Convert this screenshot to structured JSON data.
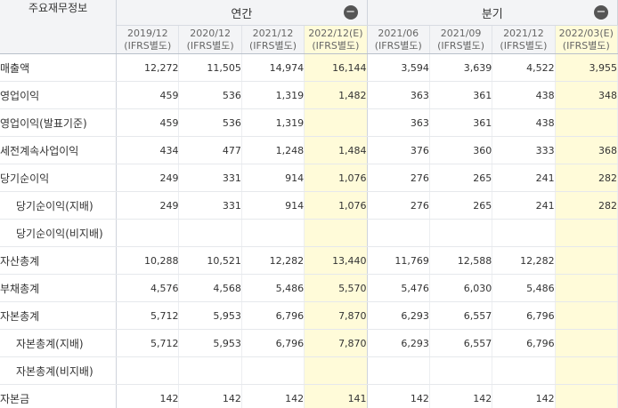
{
  "header": {
    "corner_label": "주요재무정보",
    "annual_label": "연간",
    "quarter_label": "분기",
    "collapse_glyph": "−"
  },
  "periods": {
    "annual": [
      {
        "date": "2019/12",
        "type": "(IFRS별도)"
      },
      {
        "date": "2020/12",
        "type": "(IFRS별도)"
      },
      {
        "date": "2021/12",
        "type": "(IFRS별도)"
      },
      {
        "date": "2022/12(E)",
        "type": "(IFRS별도)"
      }
    ],
    "quarter": [
      {
        "date": "2021/06",
        "type": "(IFRS별도)"
      },
      {
        "date": "2021/09",
        "type": "(IFRS별도)"
      },
      {
        "date": "2021/12",
        "type": "(IFRS별도)"
      },
      {
        "date": "2022/03(E)",
        "type": "(IFRS별도)"
      }
    ]
  },
  "rows": [
    {
      "label": "매출액",
      "indent": false,
      "values": [
        "12,272",
        "11,505",
        "14,974",
        "16,144",
        "3,594",
        "3,639",
        "4,522",
        "3,955"
      ]
    },
    {
      "label": "영업이익",
      "indent": false,
      "values": [
        "459",
        "536",
        "1,319",
        "1,482",
        "363",
        "361",
        "438",
        "348"
      ]
    },
    {
      "label": "영업이익(발표기준)",
      "indent": false,
      "values": [
        "459",
        "536",
        "1,319",
        "",
        "363",
        "361",
        "438",
        ""
      ]
    },
    {
      "label": "세전계속사업이익",
      "indent": false,
      "values": [
        "434",
        "477",
        "1,248",
        "1,484",
        "376",
        "360",
        "333",
        "368"
      ]
    },
    {
      "label": "당기순이익",
      "indent": false,
      "values": [
        "249",
        "331",
        "914",
        "1,076",
        "276",
        "265",
        "241",
        "282"
      ]
    },
    {
      "label": "당기순이익(지배)",
      "indent": true,
      "values": [
        "249",
        "331",
        "914",
        "1,076",
        "276",
        "265",
        "241",
        "282"
      ]
    },
    {
      "label": "당기순이익(비지배)",
      "indent": true,
      "values": [
        "",
        "",
        "",
        "",
        "",
        "",
        "",
        ""
      ]
    },
    {
      "label": "자산총계",
      "indent": false,
      "values": [
        "10,288",
        "10,521",
        "12,282",
        "13,440",
        "11,769",
        "12,588",
        "12,282",
        ""
      ]
    },
    {
      "label": "부채총계",
      "indent": false,
      "values": [
        "4,576",
        "4,568",
        "5,486",
        "5,570",
        "5,476",
        "6,030",
        "5,486",
        ""
      ]
    },
    {
      "label": "자본총계",
      "indent": false,
      "values": [
        "5,712",
        "5,953",
        "6,796",
        "7,870",
        "6,293",
        "6,557",
        "6,796",
        ""
      ]
    },
    {
      "label": "자본총계(지배)",
      "indent": true,
      "values": [
        "5,712",
        "5,953",
        "6,796",
        "7,870",
        "6,293",
        "6,557",
        "6,796",
        ""
      ]
    },
    {
      "label": "자본총계(비지배)",
      "indent": true,
      "values": [
        "",
        "",
        "",
        "",
        "",
        "",
        "",
        ""
      ]
    },
    {
      "label": "자본금",
      "indent": false,
      "values": [
        "142",
        "142",
        "142",
        "141",
        "142",
        "142",
        "142",
        ""
      ]
    }
  ],
  "colors": {
    "estimate_bg": "#fffbd9",
    "header_bg": "#f3f4f6",
    "border": "#cfd4dc"
  }
}
